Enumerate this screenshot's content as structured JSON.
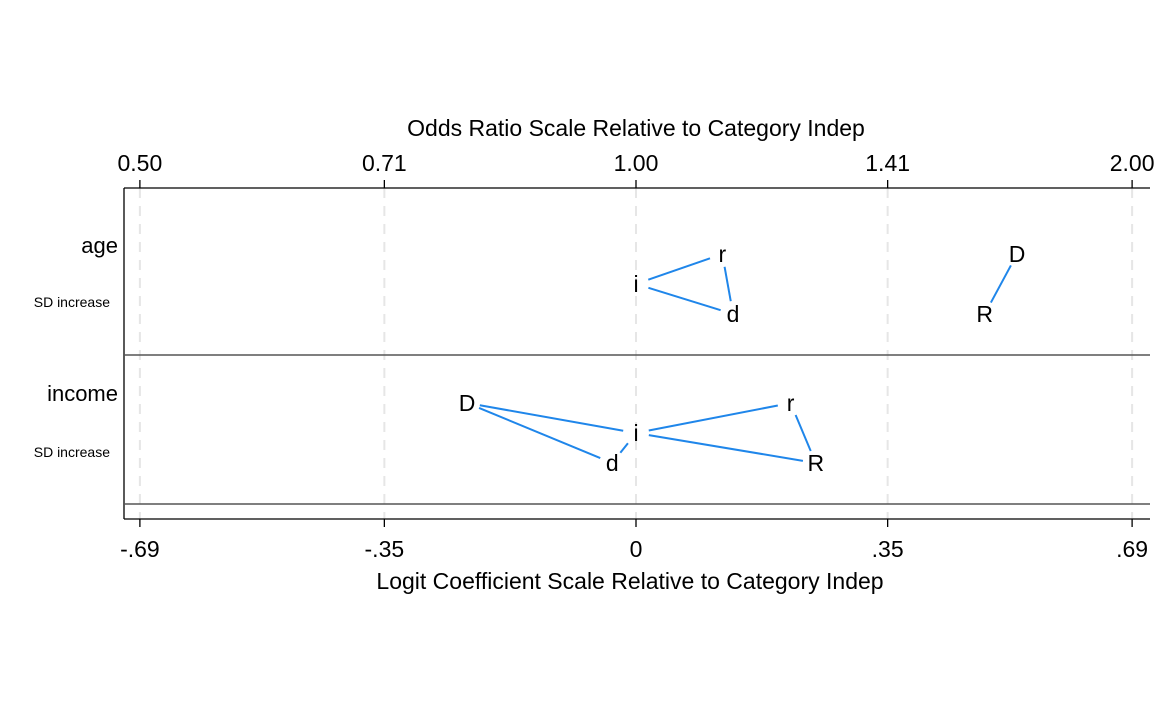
{
  "chart_data": {
    "type": "odds-ratio-plot",
    "title": "",
    "top_axis": {
      "label": "Odds Ratio Scale Relative to Category Indep",
      "tick_labels": [
        "0.50",
        "0.71",
        "1.00",
        "1.41",
        "2.00"
      ]
    },
    "bottom_axis": {
      "label": "Logit Coefficient Scale Relative to Category Indep",
      "tick_labels": [
        "-.69",
        "-.35",
        "0",
        ".35",
        ".69"
      ],
      "tick_values": [
        -0.69,
        -0.35,
        0,
        0.35,
        0.69
      ],
      "xlim": [
        -0.71,
        0.71
      ]
    },
    "grid": "vertical dashed lines at tick positions",
    "variables": [
      {
        "name": "age",
        "sublabel": "SD increase",
        "points": [
          {
            "label": "i",
            "x": 0.0,
            "level": 0
          },
          {
            "label": "r",
            "x": 0.12,
            "level": 1
          },
          {
            "label": "d",
            "x": 0.135,
            "level": -1
          },
          {
            "label": "D",
            "x": 0.53,
            "level": 1
          },
          {
            "label": "R",
            "x": 0.485,
            "level": -1
          }
        ],
        "connections": [
          [
            "i",
            "r"
          ],
          [
            "r",
            "d"
          ],
          [
            "d",
            "i"
          ],
          [
            "D",
            "R"
          ]
        ]
      },
      {
        "name": "income",
        "sublabel": "SD increase",
        "points": [
          {
            "label": "i",
            "x": 0.0,
            "level": 0
          },
          {
            "label": "D",
            "x": -0.235,
            "level": 1
          },
          {
            "label": "d",
            "x": -0.033,
            "level": -1
          },
          {
            "label": "r",
            "x": 0.215,
            "level": 1
          },
          {
            "label": "R",
            "x": 0.25,
            "level": -1
          }
        ],
        "connections": [
          [
            "D",
            "i"
          ],
          [
            "D",
            "d"
          ],
          [
            "d",
            "i"
          ],
          [
            "i",
            "r"
          ],
          [
            "r",
            "R"
          ],
          [
            "R",
            "i"
          ]
        ]
      }
    ],
    "line_color": "#1f86ea"
  }
}
